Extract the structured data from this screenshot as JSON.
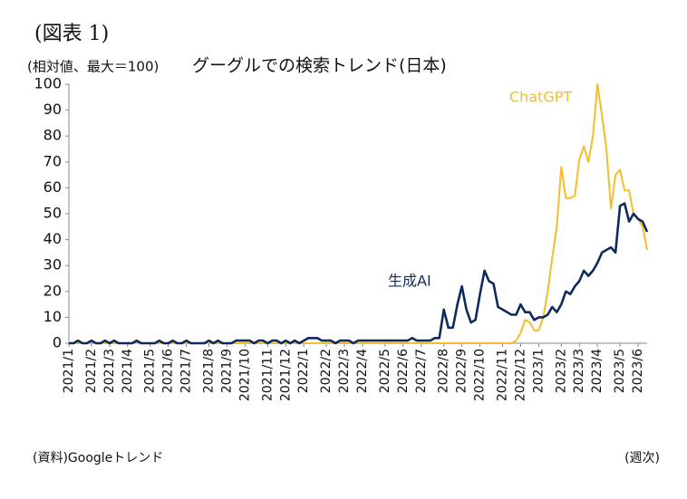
{
  "figure_label": "(図表 1)",
  "source": "(資料)Googleトレンド",
  "frequency": "(週次)",
  "chart_data": {
    "type": "line",
    "title": "グーグルでの検索トレンド(日本)",
    "y_label": "(相対値、最大＝100)",
    "categories": [
      "2021/1",
      null,
      null,
      null,
      null,
      "2021/2",
      null,
      null,
      null,
      "2021/3",
      null,
      null,
      null,
      "2021/4",
      null,
      null,
      null,
      null,
      "2021/5",
      null,
      null,
      null,
      "2021/6",
      null,
      null,
      null,
      "2021/7",
      null,
      null,
      null,
      null,
      "2021/8",
      null,
      null,
      null,
      "2021/9",
      null,
      null,
      null,
      "2021/10",
      null,
      null,
      null,
      null,
      "2021/11",
      null,
      null,
      null,
      "2021/12",
      null,
      null,
      null,
      "2022/1",
      null,
      null,
      null,
      null,
      "2022/2",
      null,
      null,
      null,
      "2022/3",
      null,
      null,
      null,
      "2022/4",
      null,
      null,
      null,
      null,
      "2022/5",
      null,
      null,
      null,
      "2022/6",
      null,
      null,
      null,
      "2022/7",
      null,
      null,
      null,
      null,
      "2022/8",
      null,
      null,
      null,
      "2022/9",
      null,
      null,
      null,
      "2022/10",
      null,
      null,
      null,
      null,
      "2022/11",
      null,
      null,
      null,
      "2022/12",
      null,
      null,
      null,
      "2023/1",
      null,
      null,
      null,
      null,
      "2023/2",
      null,
      null,
      null,
      "2023/3",
      null,
      null,
      null,
      "2023/4",
      null,
      null,
      null,
      null,
      "2023/5",
      null,
      null,
      null,
      "2023/6",
      null,
      null
    ],
    "series": [
      {
        "name": "ChatGPT",
        "color": "#f2be2a",
        "values": [
          0,
          0,
          0,
          0,
          0,
          1,
          0,
          0,
          0,
          0,
          0,
          0,
          0,
          0,
          0,
          1,
          0,
          0,
          0,
          0,
          0,
          0,
          0,
          0,
          0,
          0,
          0,
          0,
          0,
          0,
          0,
          0,
          0,
          0,
          0,
          0,
          0,
          0,
          0,
          0,
          0,
          0,
          0,
          0,
          0,
          0,
          0,
          0,
          0,
          0,
          1,
          0,
          0,
          0,
          0,
          0,
          0,
          0,
          0,
          0,
          0,
          0,
          0,
          0,
          0,
          0,
          0,
          0,
          0,
          0,
          0,
          0,
          0,
          0,
          0,
          0,
          0,
          0,
          0,
          0,
          0,
          0,
          0,
          0,
          0,
          0,
          0,
          0,
          0,
          0,
          0,
          0,
          0,
          0,
          0,
          0,
          0,
          0,
          0,
          1,
          4,
          9,
          8,
          5,
          5,
          10,
          20,
          33,
          45,
          68,
          56,
          56,
          57,
          71,
          76,
          70,
          80,
          100,
          88,
          75,
          52,
          65,
          67,
          59,
          59,
          50,
          48,
          45,
          36
        ]
      },
      {
        "name": "生成AI",
        "color": "#0f2a5c",
        "values": [
          0,
          0,
          1,
          0,
          0,
          1,
          0,
          0,
          1,
          0,
          1,
          0,
          0,
          0,
          0,
          1,
          0,
          0,
          0,
          0,
          1,
          0,
          0,
          1,
          0,
          0,
          1,
          0,
          0,
          0,
          0,
          1,
          0,
          1,
          0,
          0,
          0,
          1,
          1,
          1,
          1,
          0,
          1,
          1,
          0,
          1,
          1,
          0,
          1,
          0,
          1,
          0,
          1,
          2,
          2,
          2,
          1,
          1,
          1,
          0,
          1,
          1,
          1,
          0,
          1,
          1,
          1,
          1,
          1,
          1,
          1,
          1,
          1,
          1,
          1,
          1,
          2,
          1,
          1,
          1,
          1,
          2,
          2,
          13,
          6,
          6,
          15,
          22,
          13,
          8,
          9,
          19,
          28,
          24,
          23,
          14,
          13,
          12,
          11,
          11,
          15,
          12,
          12,
          9,
          10,
          10,
          11,
          14,
          12,
          15,
          20,
          19,
          22,
          24,
          28,
          26,
          28,
          31,
          35,
          36,
          37,
          35,
          53,
          54,
          47,
          50,
          48,
          47,
          43
        ]
      }
    ],
    "ylim": [
      0,
      100
    ],
    "yticks": [
      0,
      10,
      20,
      30,
      40,
      50,
      60,
      70,
      80,
      90,
      100
    ]
  }
}
